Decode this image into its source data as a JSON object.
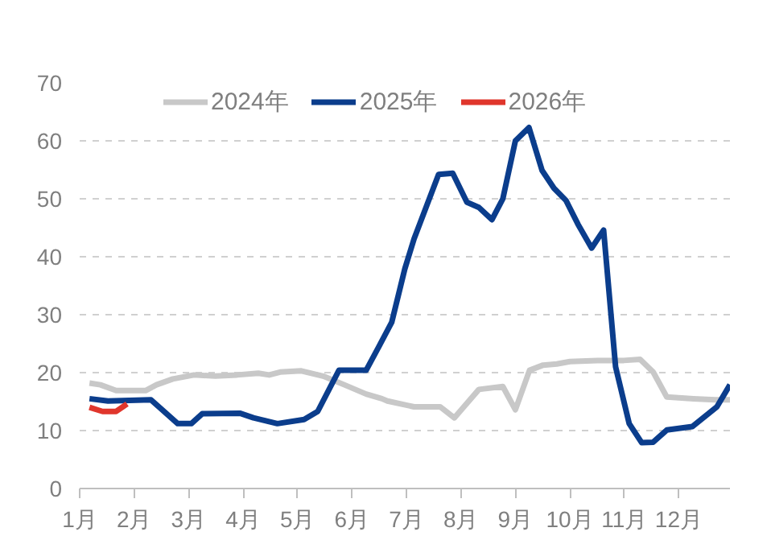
{
  "chart_data": {
    "type": "line",
    "legend": "top",
    "grid": "y",
    "line_style": "solid",
    "marker": "none",
    "xlim": [
      1,
      12.94
    ],
    "xticks": [
      {
        "value": 1,
        "label": "1月"
      },
      {
        "value": 2,
        "label": "2月"
      },
      {
        "value": 3,
        "label": "3月"
      },
      {
        "value": 4,
        "label": "4月"
      },
      {
        "value": 5,
        "label": "5月"
      },
      {
        "value": 6,
        "label": "6月"
      },
      {
        "value": 7,
        "label": "7月"
      },
      {
        "value": 8,
        "label": "8月"
      },
      {
        "value": 9,
        "label": "9月"
      },
      {
        "value": 10,
        "label": "10月"
      },
      {
        "value": 11,
        "label": "11月"
      },
      {
        "value": 12,
        "label": "12月"
      }
    ],
    "ylim": [
      0,
      70
    ],
    "yticks": [
      0,
      10,
      20,
      30,
      40,
      50,
      60,
      70
    ],
    "series": [
      {
        "name": "2024年",
        "color": "#c8c8c8",
        "x": [
          1.18,
          1.38,
          1.67,
          2.21,
          2.41,
          2.71,
          3.1,
          3.49,
          3.89,
          4.28,
          4.48,
          4.68,
          5.07,
          5.47,
          5.86,
          6.26,
          6.55,
          6.65,
          7.14,
          7.62,
          7.88,
          8.33,
          8.77,
          9.0,
          9.26,
          9.51,
          9.76,
          10.0,
          10.5,
          10.99,
          11.29,
          11.53,
          11.78,
          12.27,
          12.67,
          12.94
        ],
        "values": [
          18.2,
          17.9,
          16.9,
          16.9,
          17.9,
          18.9,
          19.6,
          19.4,
          19.6,
          19.9,
          19.6,
          20.1,
          20.3,
          19.4,
          17.9,
          16.3,
          15.5,
          15.1,
          14.1,
          14.1,
          12.2,
          17.1,
          17.6,
          13.6,
          20.4,
          21.3,
          21.5,
          21.9,
          22.1,
          22.1,
          22.3,
          20.1,
          15.8,
          15.5,
          15.3,
          15.3
        ]
      },
      {
        "name": "2025年",
        "color": "#0b3d8c",
        "x": [
          1.18,
          1.52,
          2.31,
          2.8,
          3.05,
          3.25,
          3.94,
          4.19,
          4.63,
          5.12,
          5.37,
          5.76,
          6.26,
          6.5,
          6.73,
          6.97,
          7.14,
          7.59,
          7.85,
          8.11,
          8.33,
          8.57,
          8.77,
          9.0,
          9.25,
          9.49,
          9.71,
          9.93,
          10.15,
          10.4,
          10.62,
          10.84,
          11.09,
          11.32,
          11.53,
          11.78,
          12.25,
          12.7,
          12.94
        ],
        "values": [
          15.5,
          15.1,
          15.3,
          11.2,
          11.2,
          12.9,
          13.0,
          12.2,
          11.2,
          11.9,
          13.3,
          20.4,
          20.4,
          24.6,
          28.7,
          37.9,
          43.1,
          54.2,
          54.4,
          49.4,
          48.5,
          46.4,
          50,
          60,
          62.3,
          54.9,
          51.8,
          49.7,
          45.6,
          41.5,
          44.6,
          21,
          11.2,
          7.9,
          8.0,
          10.1,
          10.7,
          14.1,
          17.9
        ]
      },
      {
        "name": "2026年",
        "color": "#e0362c",
        "x": [
          1.18,
          1.42,
          1.67,
          1.87
        ],
        "values": [
          14.0,
          13.3,
          13.3,
          14.6
        ]
      }
    ]
  }
}
